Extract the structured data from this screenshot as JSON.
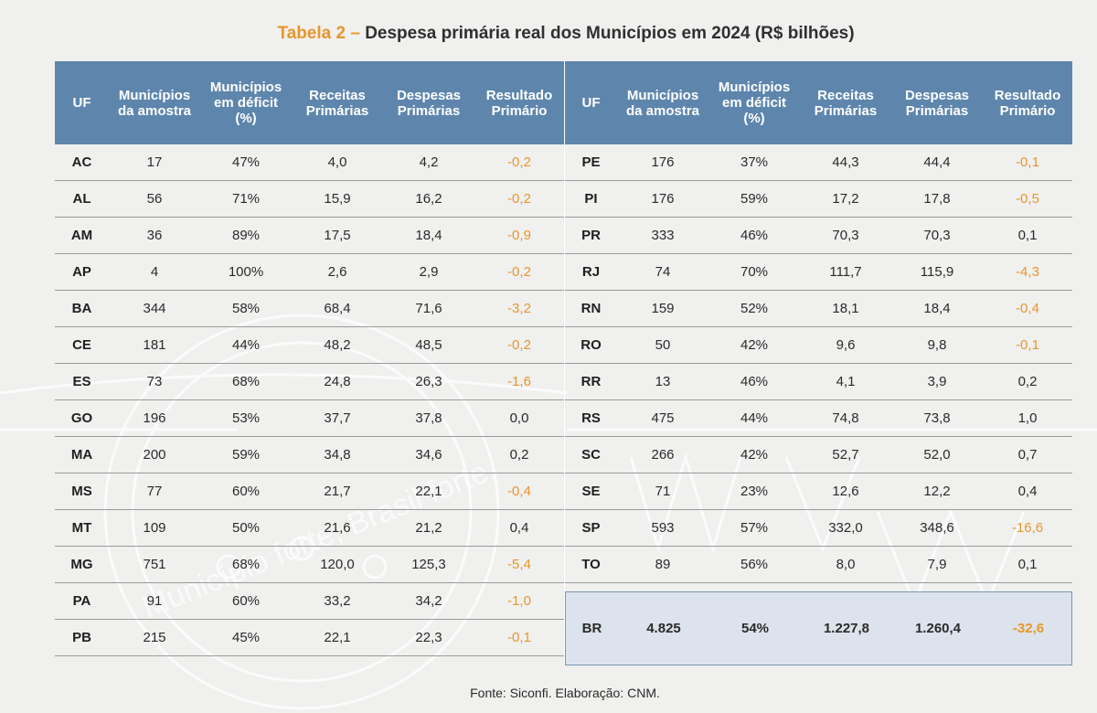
{
  "title": {
    "prefix": "Tabela 2 –",
    "text": "Despesa primária real dos Municípios em 2024 (R$ bilhões)"
  },
  "headers": {
    "uf": "UF",
    "municipios": "Municípios\nda amostra",
    "deficit": "Municípios\nem déficit\n(%)",
    "receitas": "Receitas\nPrimárias",
    "despesas": "Despesas\nPrimárias",
    "resultado": "Resultado\nPrimário"
  },
  "left_rows": [
    {
      "uf": "AC",
      "municipios": "17",
      "deficit": "47%",
      "receitas": "4,0",
      "despesas": "4,2",
      "resultado": "-0,2",
      "negative": true
    },
    {
      "uf": "AL",
      "municipios": "56",
      "deficit": "71%",
      "receitas": "15,9",
      "despesas": "16,2",
      "resultado": "-0,2",
      "negative": true
    },
    {
      "uf": "AM",
      "municipios": "36",
      "deficit": "89%",
      "receitas": "17,5",
      "despesas": "18,4",
      "resultado": "-0,9",
      "negative": true
    },
    {
      "uf": "AP",
      "municipios": "4",
      "deficit": "100%",
      "receitas": "2,6",
      "despesas": "2,9",
      "resultado": "-0,2",
      "negative": true
    },
    {
      "uf": "BA",
      "municipios": "344",
      "deficit": "58%",
      "receitas": "68,4",
      "despesas": "71,6",
      "resultado": "-3,2",
      "negative": true
    },
    {
      "uf": "CE",
      "municipios": "181",
      "deficit": "44%",
      "receitas": "48,2",
      "despesas": "48,5",
      "resultado": "-0,2",
      "negative": true
    },
    {
      "uf": "ES",
      "municipios": "73",
      "deficit": "68%",
      "receitas": "24,8",
      "despesas": "26,3",
      "resultado": "-1,6",
      "negative": true
    },
    {
      "uf": "GO",
      "municipios": "196",
      "deficit": "53%",
      "receitas": "37,7",
      "despesas": "37,8",
      "resultado": "0,0",
      "negative": false
    },
    {
      "uf": "MA",
      "municipios": "200",
      "deficit": "59%",
      "receitas": "34,8",
      "despesas": "34,6",
      "resultado": "0,2",
      "negative": false
    },
    {
      "uf": "MS",
      "municipios": "77",
      "deficit": "60%",
      "receitas": "21,7",
      "despesas": "22,1",
      "resultado": "-0,4",
      "negative": true
    },
    {
      "uf": "MT",
      "municipios": "109",
      "deficit": "50%",
      "receitas": "21,6",
      "despesas": "21,2",
      "resultado": "0,4",
      "negative": false
    },
    {
      "uf": "MG",
      "municipios": "751",
      "deficit": "68%",
      "receitas": "120,0",
      "despesas": "125,3",
      "resultado": "-5,4",
      "negative": true
    },
    {
      "uf": "PA",
      "municipios": "91",
      "deficit": "60%",
      "receitas": "33,2",
      "despesas": "34,2",
      "resultado": "-1,0",
      "negative": true
    },
    {
      "uf": "PB",
      "municipios": "215",
      "deficit": "45%",
      "receitas": "22,1",
      "despesas": "22,3",
      "resultado": "-0,1",
      "negative": true
    }
  ],
  "right_rows": [
    {
      "uf": "PE",
      "municipios": "176",
      "deficit": "37%",
      "receitas": "44,3",
      "despesas": "44,4",
      "resultado": "-0,1",
      "negative": true
    },
    {
      "uf": "PI",
      "municipios": "176",
      "deficit": "59%",
      "receitas": "17,2",
      "despesas": "17,8",
      "resultado": "-0,5",
      "negative": true
    },
    {
      "uf": "PR",
      "municipios": "333",
      "deficit": "46%",
      "receitas": "70,3",
      "despesas": "70,3",
      "resultado": "0,1",
      "negative": false
    },
    {
      "uf": "RJ",
      "municipios": "74",
      "deficit": "70%",
      "receitas": "111,7",
      "despesas": "115,9",
      "resultado": "-4,3",
      "negative": true
    },
    {
      "uf": "RN",
      "municipios": "159",
      "deficit": "52%",
      "receitas": "18,1",
      "despesas": "18,4",
      "resultado": "-0,4",
      "negative": true
    },
    {
      "uf": "RO",
      "municipios": "50",
      "deficit": "42%",
      "receitas": "9,6",
      "despesas": "9,8",
      "resultado": "-0,1",
      "negative": true
    },
    {
      "uf": "RR",
      "municipios": "13",
      "deficit": "46%",
      "receitas": "4,1",
      "despesas": "3,9",
      "resultado": "0,2",
      "negative": false
    },
    {
      "uf": "RS",
      "municipios": "475",
      "deficit": "44%",
      "receitas": "74,8",
      "despesas": "73,8",
      "resultado": "1,0",
      "negative": false
    },
    {
      "uf": "SC",
      "municipios": "266",
      "deficit": "42%",
      "receitas": "52,7",
      "despesas": "52,0",
      "resultado": "0,7",
      "negative": false
    },
    {
      "uf": "SE",
      "municipios": "71",
      "deficit": "23%",
      "receitas": "12,6",
      "despesas": "12,2",
      "resultado": "0,4",
      "negative": false
    },
    {
      "uf": "SP",
      "municipios": "593",
      "deficit": "57%",
      "receitas": "332,0",
      "despesas": "348,6",
      "resultado": "-16,6",
      "negative": true
    },
    {
      "uf": "TO",
      "municipios": "89",
      "deficit": "56%",
      "receitas": "8,0",
      "despesas": "7,9",
      "resultado": "0,1",
      "negative": false
    }
  ],
  "total": {
    "uf": "BR",
    "municipios": "4.825",
    "deficit": "54%",
    "receitas": "1.227,8",
    "despesas": "1.260,4",
    "resultado": "-32,6",
    "negative": true
  },
  "source": "Fonte: Siconfi. Elaboração: CNM.",
  "watermark_text": "Município forte, Brasil forte.",
  "colors": {
    "header_bg": "#5e86ad",
    "accent_orange": "#e8962b",
    "total_bg": "#dde3ec",
    "page_bg": "#f0f0ef"
  }
}
